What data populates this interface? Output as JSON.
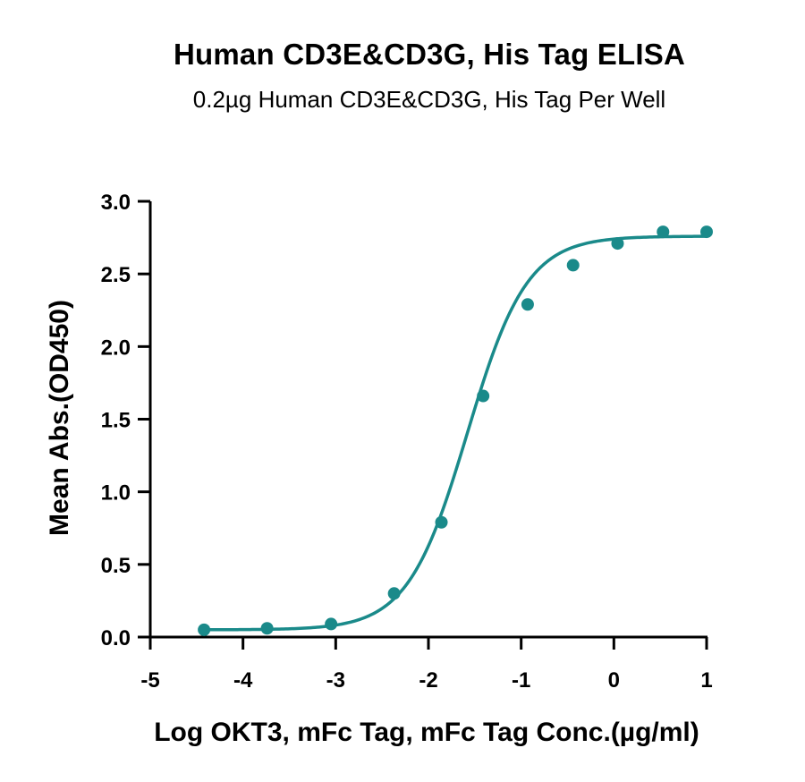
{
  "chart_data": {
    "type": "scatter",
    "title": "Human CD3E&CD3G, His Tag ELISA",
    "subtitle": "0.2µg Human CD3E&CD3G, His Tag Per Well",
    "xlabel": "Log OKT3, mFc Tag, mFc Tag Conc.(µg/ml)",
    "ylabel": "Mean Abs.(OD450)",
    "xlim": [
      -5,
      1
    ],
    "ylim": [
      0,
      3
    ],
    "xticks": [
      -5,
      -4,
      -3,
      -2,
      -1,
      0,
      1
    ],
    "xtick_labels": [
      "-5",
      "-4",
      "-3",
      "-2",
      "-1",
      "0",
      "1"
    ],
    "yticks": [
      0,
      0.5,
      1,
      1.5,
      2,
      2.5,
      3
    ],
    "ytick_labels": [
      "0.0",
      "0.5",
      "1.0",
      "1.5",
      "2.0",
      "2.5",
      "3.0"
    ],
    "grid": false,
    "color": "#1a8a8a",
    "series": [
      {
        "points": [
          {
            "x": -4.42,
            "y": 0.05
          },
          {
            "x": -3.74,
            "y": 0.06
          },
          {
            "x": -3.05,
            "y": 0.09
          },
          {
            "x": -2.37,
            "y": 0.3
          },
          {
            "x": -1.86,
            "y": 0.79
          },
          {
            "x": -1.41,
            "y": 1.66
          },
          {
            "x": -0.93,
            "y": 2.29
          },
          {
            "x": -0.44,
            "y": 2.56
          },
          {
            "x": 0.04,
            "y": 2.71
          },
          {
            "x": 0.53,
            "y": 2.79
          },
          {
            "x": 1.0,
            "y": 2.79
          }
        ],
        "fit": {
          "model": "4PL",
          "bottom": 0.05,
          "top": 2.76,
          "logEC50": -1.58,
          "hill": 1.35,
          "x_range": [
            -4.42,
            1.0
          ]
        }
      }
    ]
  }
}
